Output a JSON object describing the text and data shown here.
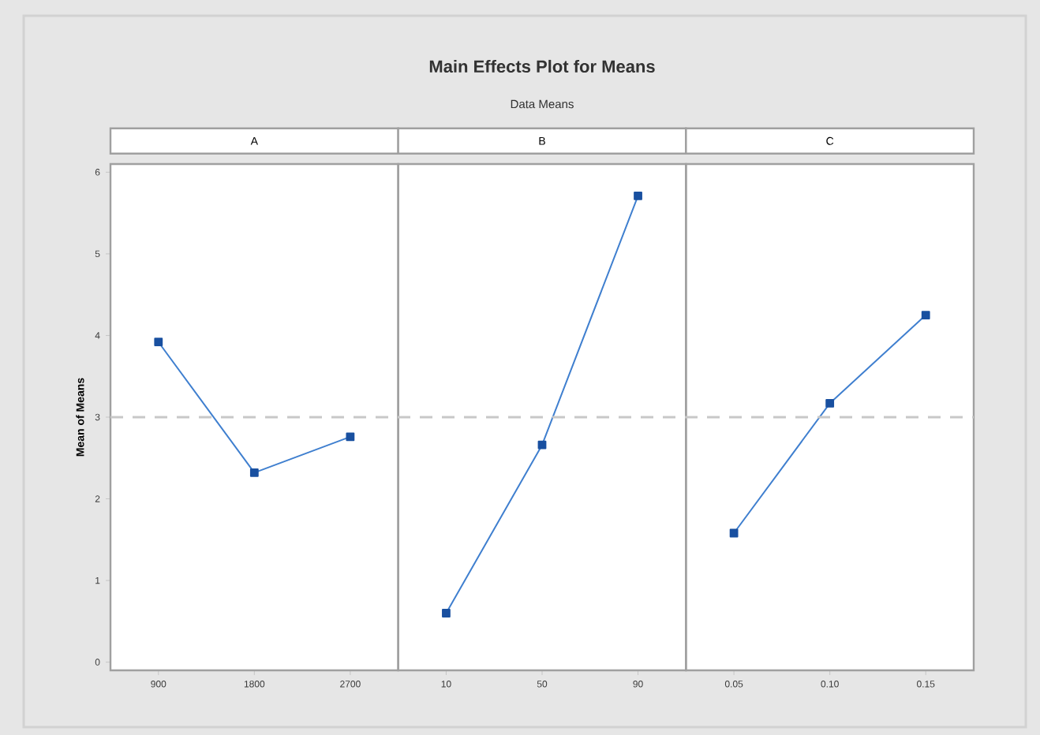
{
  "chart_data": {
    "type": "line",
    "title": "Main Effects Plot for Means",
    "subtitle": "Data Means",
    "ylabel": "Mean of Means",
    "categories": [
      "900",
      "1800",
      "2700",
      "10",
      "50",
      "90",
      "0.05",
      "0.10",
      "0.15"
    ],
    "series": [
      {
        "color": "#3f7fcf",
        "values": [
          3.92,
          2.32,
          2.76,
          null,
          null,
          null,
          null,
          null,
          null
        ]
      },
      {
        "color": "#3f7fcf",
        "values": [
          null,
          null,
          null,
          0.6,
          2.66,
          5.71,
          null,
          null,
          null
        ]
      },
      {
        "color": "#3f7fcf",
        "values": [
          null,
          null,
          null,
          null,
          null,
          null,
          1.58,
          3.17,
          4.25
        ]
      }
    ],
    "annotations": [
      "A",
      "B",
      "C"
    ],
    "marker": "square",
    "ylim": [
      -0.1,
      6.1
    ],
    "yticks": [
      0,
      1,
      2,
      3,
      4,
      5,
      6
    ],
    "ref_lines": [
      {
        "axis": "y",
        "value": 3,
        "color": "#c8c8c8",
        "line_style": "dashed"
      }
    ]
  }
}
